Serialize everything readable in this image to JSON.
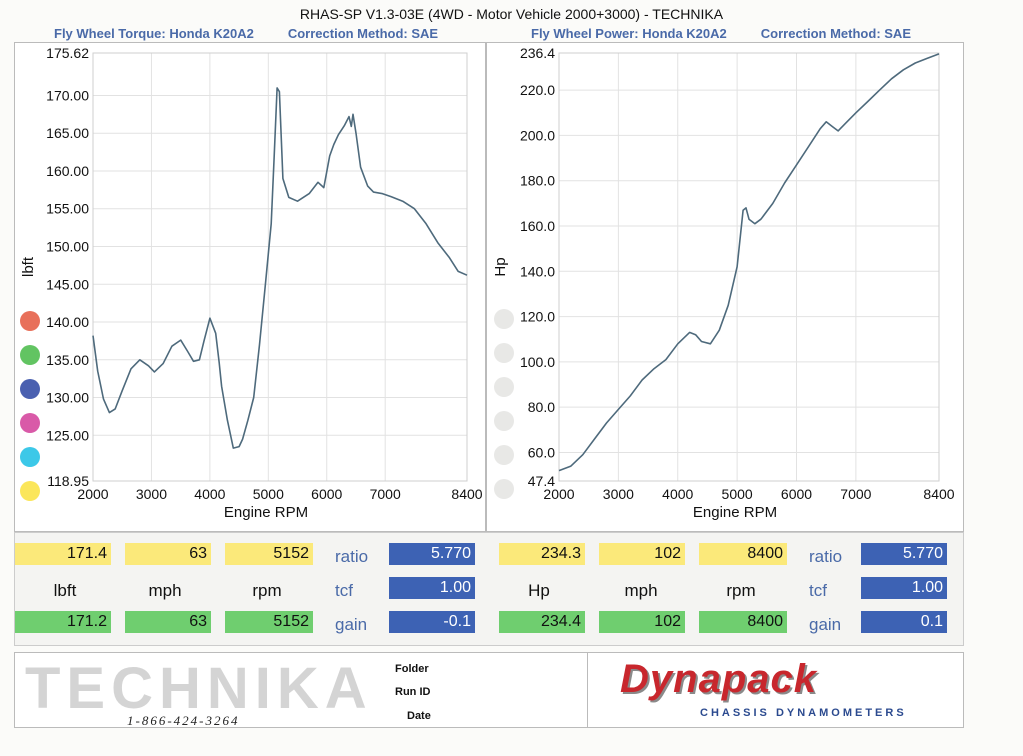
{
  "header": {
    "title": "RHAS-SP V1.3-03E  (4WD - Motor Vehicle 2000+3000) - TECHNIKA"
  },
  "torque_header": {
    "name": "Fly Wheel Torque: Honda K20A2",
    "correction": "Correction Method: SAE"
  },
  "power_header": {
    "name": "Fly Wheel Power: Honda K20A2",
    "correction": "Correction Method: SAE"
  },
  "legend_colors": [
    "#e8705a",
    "#62c462",
    "#4a60b0",
    "#d95aa8",
    "#3cc8e8",
    "#fbe65a"
  ],
  "chart_data": [
    {
      "type": "line",
      "title": "Fly Wheel Torque: Honda K20A2",
      "xlabel": "Engine RPM",
      "ylabel": "lbft",
      "xlim": [
        2000,
        8400
      ],
      "ylim": [
        118.95,
        175.62
      ],
      "xticks": [
        "2000",
        "3000",
        "4000",
        "5000",
        "6000",
        "7000",
        "8400"
      ],
      "xtick_values": [
        2000,
        3000,
        4000,
        5000,
        6000,
        7000,
        8400
      ],
      "yticks": [
        "118.95",
        "125.00",
        "130.00",
        "135.00",
        "140.00",
        "145.00",
        "150.00",
        "155.00",
        "160.00",
        "165.00",
        "170.00",
        "175.62"
      ],
      "ytick_values": [
        118.95,
        125,
        130,
        135,
        140,
        145,
        150,
        155,
        160,
        165,
        170,
        175.62
      ],
      "grid": true,
      "line_color": "#4e6a7c",
      "series": [
        {
          "x": [
            2000,
            2080,
            2180,
            2280,
            2380,
            2500,
            2650,
            2800,
            2950,
            3050,
            3200,
            3350,
            3500,
            3620,
            3720,
            3820,
            3900,
            4000,
            4100,
            4160,
            4200,
            4300,
            4400,
            4500,
            4560,
            4650,
            4750,
            4850,
            4950,
            5050,
            5100,
            5150,
            5190,
            5250,
            5350,
            5500,
            5700,
            5850,
            5950,
            6050,
            6120,
            6200,
            6300,
            6380,
            6420,
            6450,
            6500,
            6580,
            6700,
            6800,
            6950,
            7100,
            7300,
            7500,
            7700,
            7900,
            8100,
            8250,
            8400
          ],
          "y": [
            138.2,
            133.5,
            129.8,
            128.0,
            128.5,
            130.9,
            133.8,
            135.0,
            134.2,
            133.4,
            134.5,
            136.8,
            137.6,
            136.1,
            134.8,
            135.0,
            137.5,
            140.5,
            138.5,
            134.6,
            131.5,
            127.0,
            123.3,
            123.5,
            124.5,
            127.0,
            130.0,
            137.0,
            145.0,
            153.0,
            162.0,
            171.0,
            170.5,
            159.0,
            156.5,
            156.0,
            157.0,
            158.5,
            157.8,
            162.0,
            163.5,
            164.8,
            166.0,
            167.2,
            165.9,
            167.5,
            165.0,
            160.5,
            158.0,
            157.2,
            157.0,
            156.6,
            156.0,
            155.0,
            153.0,
            150.5,
            148.5,
            146.7,
            146.2
          ]
        }
      ]
    },
    {
      "type": "line",
      "title": "Fly Wheel Power: Honda K20A2",
      "xlabel": "Engine RPM",
      "ylabel": "Hp",
      "xlim": [
        2000,
        8400
      ],
      "ylim": [
        47.4,
        236.4
      ],
      "xticks": [
        "2000",
        "3000",
        "4000",
        "5000",
        "6000",
        "7000",
        "8400"
      ],
      "xtick_values": [
        2000,
        3000,
        4000,
        5000,
        6000,
        7000,
        8400
      ],
      "yticks": [
        "47.4",
        "60.0",
        "80.0",
        "100.0",
        "120.0",
        "140.0",
        "160.0",
        "180.0",
        "200.0",
        "220.0",
        "236.4"
      ],
      "ytick_values": [
        47.4,
        60,
        80,
        100,
        120,
        140,
        160,
        180,
        200,
        220,
        236.4
      ],
      "grid": true,
      "line_color": "#4e6a7c",
      "series": [
        {
          "x": [
            2000,
            2200,
            2400,
            2600,
            2800,
            3000,
            3200,
            3400,
            3600,
            3800,
            4000,
            4200,
            4300,
            4400,
            4550,
            4700,
            4850,
            5000,
            5100,
            5150,
            5200,
            5300,
            5400,
            5600,
            5800,
            6000,
            6200,
            6400,
            6500,
            6600,
            6700,
            6850,
            7000,
            7200,
            7400,
            7600,
            7800,
            8000,
            8200,
            8400
          ],
          "y": [
            52,
            54,
            59,
            66,
            73,
            79,
            85,
            92,
            97,
            101,
            108,
            113,
            112,
            109,
            108,
            114,
            125,
            142,
            167,
            168,
            163,
            161,
            163,
            170,
            179,
            187,
            195,
            203,
            206,
            204,
            202,
            206,
            210,
            215,
            220,
            225,
            229,
            232,
            234,
            236
          ]
        }
      ]
    }
  ],
  "readouts": {
    "torque": {
      "max_values": [
        "171.4",
        "63",
        "5152"
      ],
      "units": [
        "lbft",
        "mph",
        "rpm"
      ],
      "cur_values": [
        "171.2",
        "63",
        "5152"
      ],
      "ratio_label": "ratio",
      "ratio": "5.770",
      "tcf_label": "tcf",
      "tcf": "1.00",
      "gain_label": "gain",
      "gain": "-0.1"
    },
    "power": {
      "max_values": [
        "234.3",
        "102",
        "8400"
      ],
      "units": [
        "Hp",
        "mph",
        "rpm"
      ],
      "cur_values": [
        "234.4",
        "102",
        "8400"
      ],
      "ratio_label": "ratio",
      "ratio": "5.770",
      "tcf_label": "tcf",
      "tcf": "1.00",
      "gain_label": "gain",
      "gain": "0.1"
    }
  },
  "footer": {
    "brand": "TECHNIKA",
    "phone": "1-866-424-3264",
    "folder_label": "Folder",
    "runid_label": "Run ID",
    "date_label": "Date",
    "dyno_brand": "Dynapack",
    "dyno_sub": "CHASSIS   DYNAMOMETERS"
  }
}
